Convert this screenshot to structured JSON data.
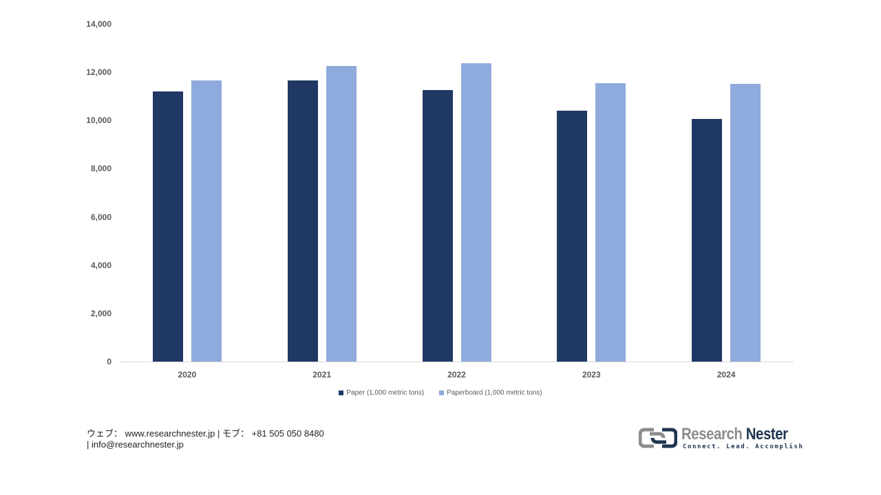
{
  "chart_data": {
    "type": "bar",
    "title": "",
    "xlabel": "",
    "ylabel": "",
    "categories": [
      "2020",
      "2021",
      "2022",
      "2023",
      "2024"
    ],
    "series": [
      {
        "name": "Paper (1,000 metric tons)",
        "color": "#203864",
        "values": [
          11200,
          11660,
          11260,
          10410,
          10070
        ]
      },
      {
        "name": "Paperboard (1,000 metric tons)",
        "color": "#8faadc",
        "values": [
          11660,
          12260,
          12380,
          11550,
          11520
        ]
      }
    ],
    "ylim": [
      0,
      14000
    ],
    "yticks": [
      "0",
      "2,000",
      "4,000",
      "6,000",
      "8,000",
      "10,000",
      "12,000",
      "14,000"
    ],
    "grid": false,
    "legend_position": "bottom"
  },
  "footer": {
    "line1": "ウェブ： www.researchnester.jp | モブ： +81 505 050 8480",
    "line2": "| info@researchnester.jp"
  },
  "logo": {
    "name_part1": "Research ",
    "name_part2": "Nester",
    "tagline": "Connect. Lead. Accomplish"
  }
}
